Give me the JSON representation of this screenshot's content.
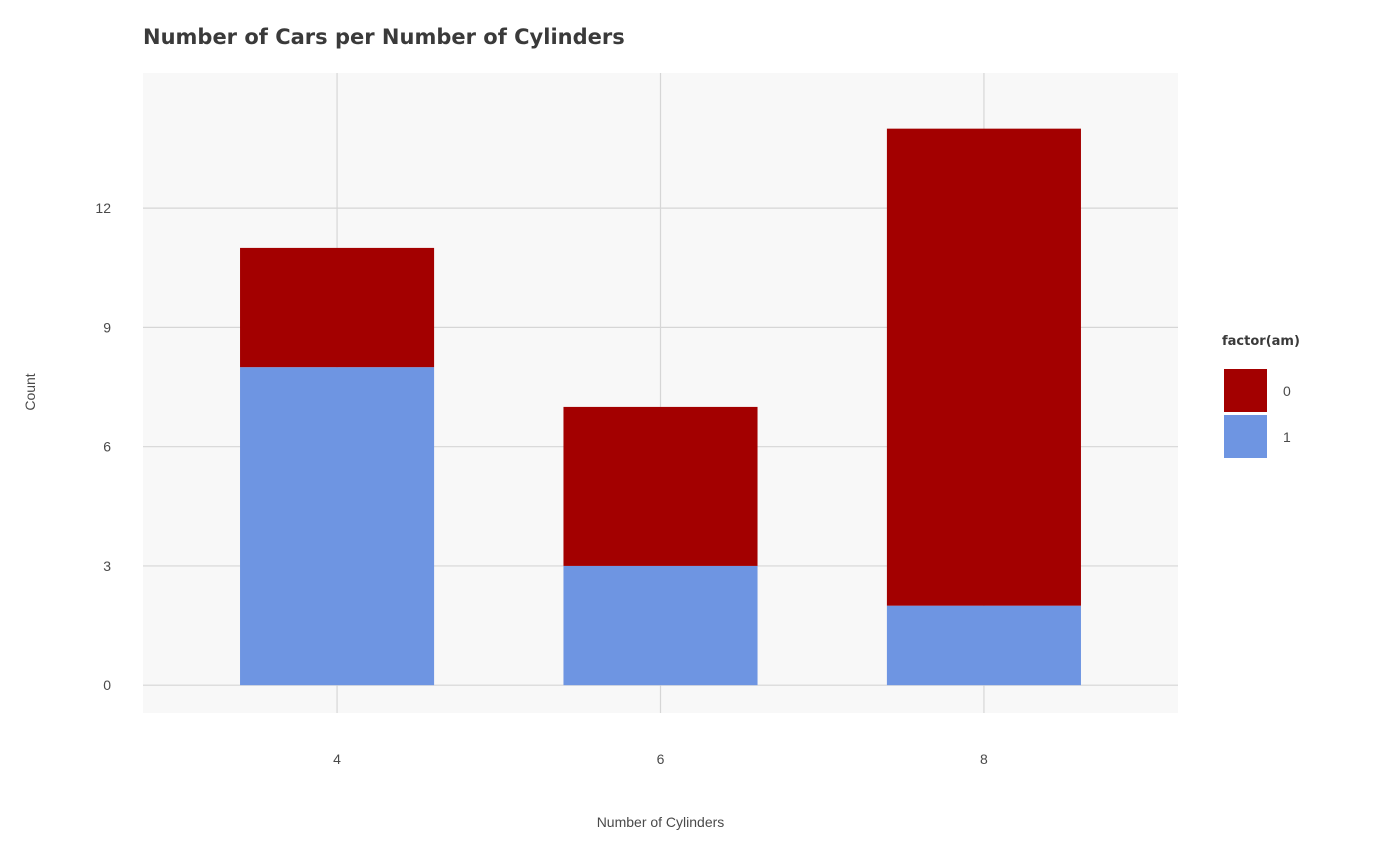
{
  "chart_data": {
    "type": "bar",
    "stacked": true,
    "title": "Number of Cars per Number of Cylinders",
    "xlabel": "Number of Cylinders",
    "ylabel": "Count",
    "categories": [
      "4",
      "6",
      "8"
    ],
    "series": [
      {
        "name": "1",
        "values": [
          8,
          3,
          2
        ],
        "color": "#6e95e2"
      },
      {
        "name": "0",
        "values": [
          3,
          4,
          12
        ],
        "color": "#a30000"
      }
    ],
    "yticks": [
      0,
      3,
      6,
      9,
      12
    ],
    "ylim": [
      -0.7,
      15.4
    ],
    "grid": true,
    "panel_background": "#f8f8f8",
    "grid_color": "#d6d6d6",
    "legend": {
      "title": "factor(am)",
      "placement": "right",
      "entries": [
        {
          "label": "0",
          "color": "#a30000"
        },
        {
          "label": "1",
          "color": "#6e95e2"
        }
      ]
    }
  }
}
